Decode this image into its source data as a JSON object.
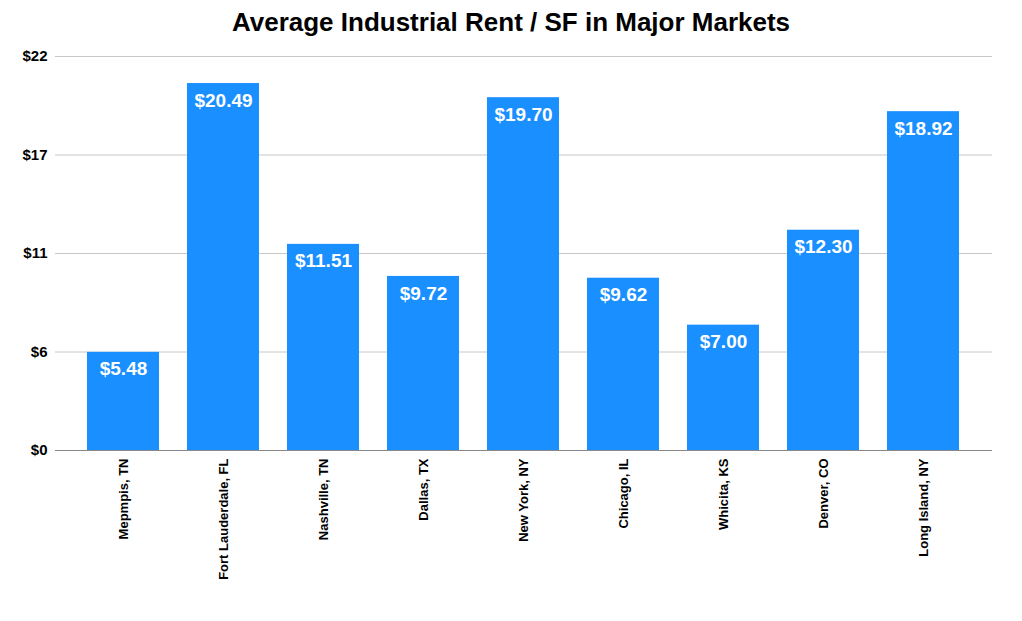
{
  "chart_data": {
    "type": "bar",
    "title": "Average Industrial Rent / SF in Major Markets",
    "categories": [
      "Mepmpis, TN",
      "Fort Lauderdale, FL",
      "Nashville, TN",
      "Dallas, TX",
      "New York, NY",
      "Chicago, IL",
      "Whicita, KS",
      "Denver, CO",
      "Long Island, NY"
    ],
    "values": [
      5.48,
      20.49,
      11.51,
      9.72,
      19.7,
      9.62,
      7.0,
      12.3,
      18.92
    ],
    "value_labels": [
      "$5.48",
      "$20.49",
      "$11.51",
      "$9.72",
      "$19.70",
      "$9.62",
      "$7.00",
      "$12.30",
      "$18.92"
    ],
    "color": "#1a8fff",
    "ylim": [
      0,
      22
    ],
    "yticks": [
      {
        "value": 0,
        "label": "$0"
      },
      {
        "value": 5.5,
        "label": "$6"
      },
      {
        "value": 11,
        "label": "$11"
      },
      {
        "value": 16.5,
        "label": "$17"
      },
      {
        "value": 22,
        "label": "$22"
      }
    ],
    "grid": true,
    "data_labels": true
  }
}
